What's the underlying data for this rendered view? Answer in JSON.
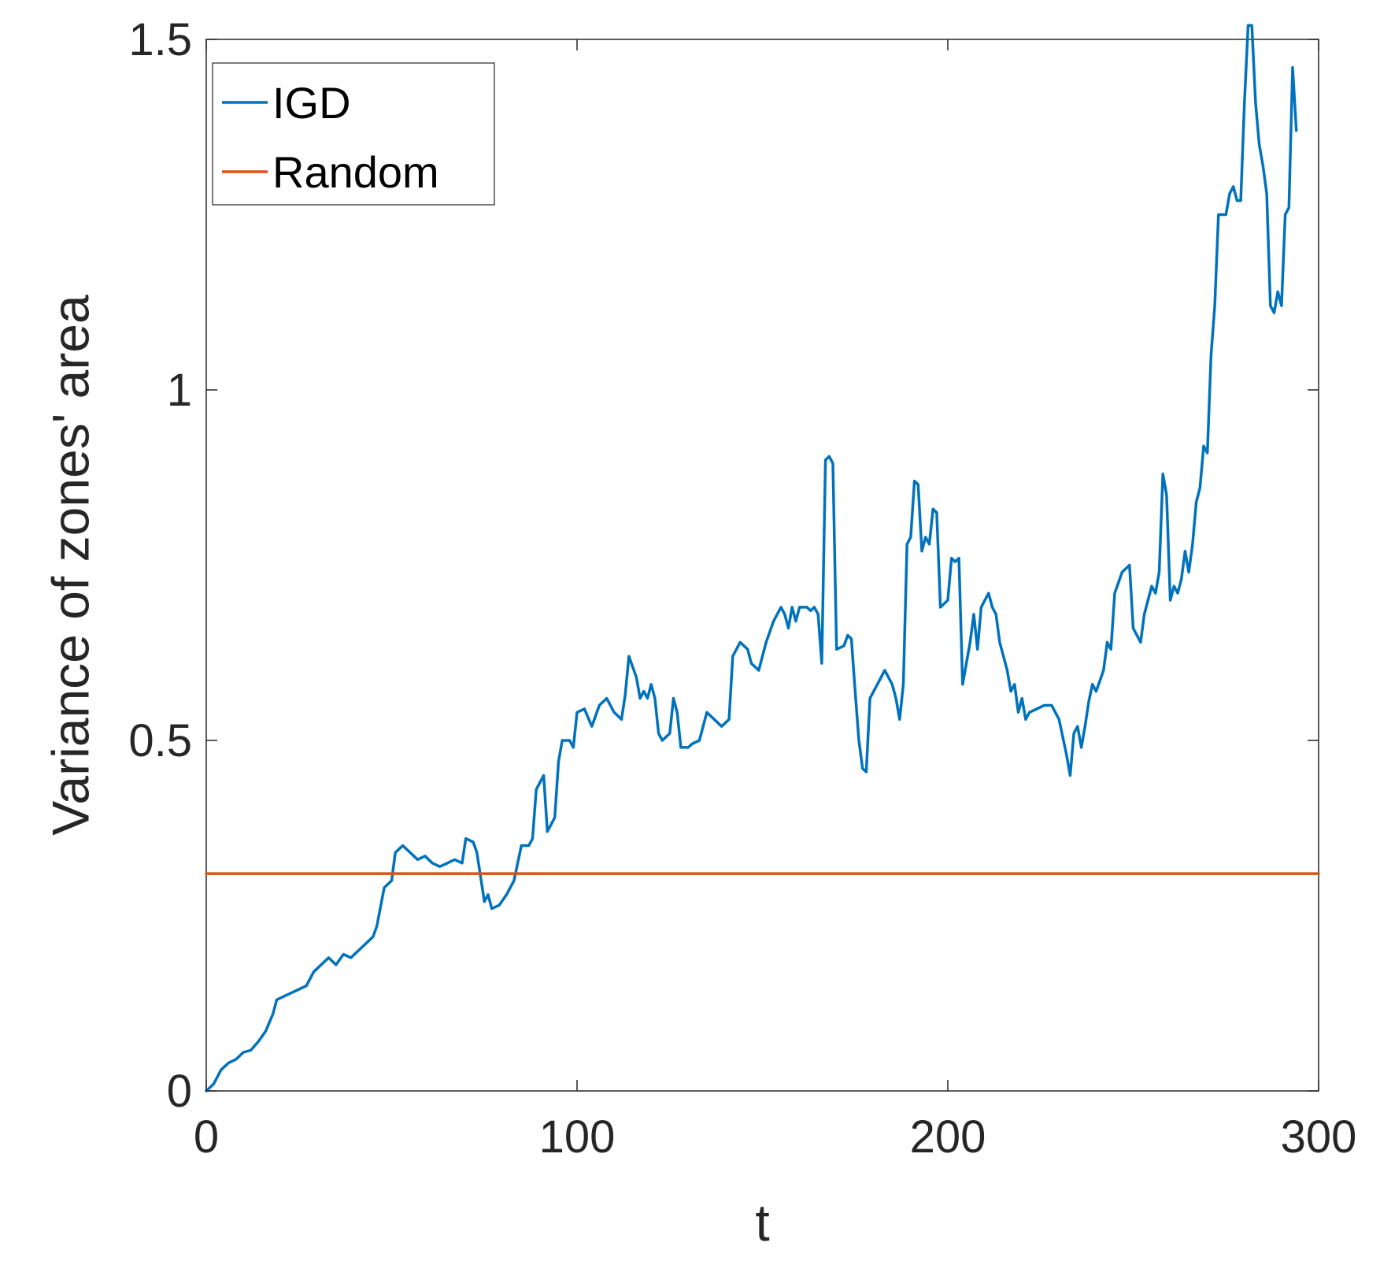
{
  "chart_data": {
    "type": "line",
    "title": "",
    "xlabel": "t",
    "ylabel": "Variance of zones' area",
    "xlim": [
      0,
      300
    ],
    "ylim": [
      0,
      1.5
    ],
    "xticks": [
      0,
      100,
      200,
      300
    ],
    "xtick_labels": [
      "0",
      "100",
      "200",
      "300"
    ],
    "yticks": [
      0,
      0.5,
      1,
      1.5
    ],
    "ytick_labels": [
      "0",
      "0.5",
      "1",
      "1.5"
    ],
    "grid": false,
    "legend_position": "top-left",
    "series": [
      {
        "name": "IGD",
        "color": "#0072BD",
        "points": [
          [
            0,
            0.0
          ],
          [
            2,
            0.01
          ],
          [
            4,
            0.03
          ],
          [
            6,
            0.04
          ],
          [
            8,
            0.045
          ],
          [
            10,
            0.055
          ],
          [
            12,
            0.058
          ],
          [
            14,
            0.07
          ],
          [
            16,
            0.085
          ],
          [
            18,
            0.11
          ],
          [
            19,
            0.13
          ],
          [
            21,
            0.135
          ],
          [
            23,
            0.14
          ],
          [
            25,
            0.145
          ],
          [
            27,
            0.15
          ],
          [
            29,
            0.17
          ],
          [
            31,
            0.18
          ],
          [
            33,
            0.19
          ],
          [
            35,
            0.18
          ],
          [
            37,
            0.195
          ],
          [
            39,
            0.19
          ],
          [
            41,
            0.2
          ],
          [
            43,
            0.21
          ],
          [
            45,
            0.22
          ],
          [
            46,
            0.235
          ],
          [
            48,
            0.29
          ],
          [
            50,
            0.3
          ],
          [
            51,
            0.34
          ],
          [
            53,
            0.35
          ],
          [
            55,
            0.34
          ],
          [
            57,
            0.33
          ],
          [
            59,
            0.335
          ],
          [
            61,
            0.325
          ],
          [
            63,
            0.32
          ],
          [
            65,
            0.325
          ],
          [
            67,
            0.33
          ],
          [
            69,
            0.325
          ],
          [
            70,
            0.36
          ],
          [
            72,
            0.355
          ],
          [
            73,
            0.34
          ],
          [
            75,
            0.27
          ],
          [
            76,
            0.28
          ],
          [
            77,
            0.26
          ],
          [
            79,
            0.265
          ],
          [
            81,
            0.28
          ],
          [
            83,
            0.3
          ],
          [
            85,
            0.35
          ],
          [
            87,
            0.35
          ],
          [
            88,
            0.36
          ],
          [
            89,
            0.43
          ],
          [
            91,
            0.45
          ],
          [
            92,
            0.37
          ],
          [
            93,
            0.38
          ],
          [
            94,
            0.39
          ],
          [
            95,
            0.47
          ],
          [
            96,
            0.5
          ],
          [
            98,
            0.5
          ],
          [
            99,
            0.49
          ],
          [
            100,
            0.54
          ],
          [
            102,
            0.545
          ],
          [
            104,
            0.52
          ],
          [
            106,
            0.55
          ],
          [
            108,
            0.56
          ],
          [
            110,
            0.54
          ],
          [
            112,
            0.53
          ],
          [
            113,
            0.565
          ],
          [
            114,
            0.62
          ],
          [
            116,
            0.59
          ],
          [
            117,
            0.56
          ],
          [
            118,
            0.57
          ],
          [
            119,
            0.56
          ],
          [
            120,
            0.58
          ],
          [
            121,
            0.56
          ],
          [
            122,
            0.51
          ],
          [
            123,
            0.5
          ],
          [
            125,
            0.51
          ],
          [
            126,
            0.56
          ],
          [
            127,
            0.54
          ],
          [
            128,
            0.49
          ],
          [
            130,
            0.49
          ],
          [
            131,
            0.495
          ],
          [
            133,
            0.5
          ],
          [
            135,
            0.54
          ],
          [
            137,
            0.53
          ],
          [
            139,
            0.52
          ],
          [
            141,
            0.53
          ],
          [
            142,
            0.62
          ],
          [
            144,
            0.64
          ],
          [
            146,
            0.63
          ],
          [
            147,
            0.61
          ],
          [
            149,
            0.6
          ],
          [
            151,
            0.64
          ],
          [
            153,
            0.67
          ],
          [
            155,
            0.69
          ],
          [
            156,
            0.68
          ],
          [
            157,
            0.66
          ],
          [
            158,
            0.69
          ],
          [
            159,
            0.67
          ],
          [
            160,
            0.69
          ],
          [
            162,
            0.69
          ],
          [
            163,
            0.685
          ],
          [
            164,
            0.69
          ],
          [
            165,
            0.68
          ],
          [
            166,
            0.61
          ],
          [
            167,
            0.9
          ],
          [
            168,
            0.905
          ],
          [
            169,
            0.895
          ],
          [
            170,
            0.63
          ],
          [
            172,
            0.635
          ],
          [
            173,
            0.65
          ],
          [
            174,
            0.645
          ],
          [
            175,
            0.57
          ],
          [
            176,
            0.5
          ],
          [
            177,
            0.46
          ],
          [
            178,
            0.455
          ],
          [
            179,
            0.56
          ],
          [
            181,
            0.58
          ],
          [
            183,
            0.6
          ],
          [
            185,
            0.58
          ],
          [
            186,
            0.56
          ],
          [
            187,
            0.53
          ],
          [
            188,
            0.58
          ],
          [
            189,
            0.78
          ],
          [
            190,
            0.79
          ],
          [
            191,
            0.87
          ],
          [
            192,
            0.865
          ],
          [
            193,
            0.77
          ],
          [
            194,
            0.79
          ],
          [
            195,
            0.78
          ],
          [
            196,
            0.83
          ],
          [
            197,
            0.825
          ],
          [
            198,
            0.69
          ],
          [
            199,
            0.695
          ],
          [
            200,
            0.7
          ],
          [
            201,
            0.76
          ],
          [
            202,
            0.755
          ],
          [
            203,
            0.76
          ],
          [
            204,
            0.58
          ],
          [
            205,
            0.61
          ],
          [
            206,
            0.64
          ],
          [
            207,
            0.68
          ],
          [
            208,
            0.63
          ],
          [
            209,
            0.69
          ],
          [
            210,
            0.7
          ],
          [
            211,
            0.71
          ],
          [
            212,
            0.69
          ],
          [
            213,
            0.68
          ],
          [
            214,
            0.64
          ],
          [
            215,
            0.62
          ],
          [
            216,
            0.6
          ],
          [
            217,
            0.57
          ],
          [
            218,
            0.58
          ],
          [
            219,
            0.54
          ],
          [
            220,
            0.56
          ],
          [
            221,
            0.53
          ],
          [
            222,
            0.54
          ],
          [
            224,
            0.545
          ],
          [
            226,
            0.55
          ],
          [
            228,
            0.55
          ],
          [
            230,
            0.53
          ],
          [
            232,
            0.48
          ],
          [
            233,
            0.45
          ],
          [
            234,
            0.51
          ],
          [
            235,
            0.52
          ],
          [
            236,
            0.49
          ],
          [
            237,
            0.52
          ],
          [
            238,
            0.555
          ],
          [
            239,
            0.58
          ],
          [
            240,
            0.57
          ],
          [
            241,
            0.585
          ],
          [
            242,
            0.6
          ],
          [
            243,
            0.64
          ],
          [
            244,
            0.63
          ],
          [
            245,
            0.71
          ],
          [
            247,
            0.74
          ],
          [
            249,
            0.75
          ],
          [
            250,
            0.66
          ],
          [
            252,
            0.64
          ],
          [
            253,
            0.68
          ],
          [
            254,
            0.7
          ],
          [
            255,
            0.72
          ],
          [
            256,
            0.71
          ],
          [
            257,
            0.74
          ],
          [
            258,
            0.88
          ],
          [
            259,
            0.85
          ],
          [
            260,
            0.7
          ],
          [
            261,
            0.72
          ],
          [
            262,
            0.71
          ],
          [
            263,
            0.73
          ],
          [
            264,
            0.77
          ],
          [
            265,
            0.74
          ],
          [
            266,
            0.78
          ],
          [
            267,
            0.84
          ],
          [
            268,
            0.86
          ],
          [
            269,
            0.92
          ],
          [
            270,
            0.91
          ],
          [
            271,
            1.05
          ],
          [
            272,
            1.12
          ],
          [
            273,
            1.25
          ],
          [
            275,
            1.25
          ],
          [
            276,
            1.28
          ],
          [
            277,
            1.29
          ],
          [
            278,
            1.27
          ],
          [
            279,
            1.27
          ],
          [
            280,
            1.41
          ],
          [
            281,
            1.52
          ],
          [
            282,
            1.52
          ],
          [
            283,
            1.41
          ],
          [
            284,
            1.35
          ],
          [
            285,
            1.32
          ],
          [
            286,
            1.28
          ],
          [
            287,
            1.12
          ],
          [
            288,
            1.11
          ],
          [
            289,
            1.14
          ],
          [
            290,
            1.12
          ],
          [
            291,
            1.25
          ],
          [
            292,
            1.26
          ],
          [
            293,
            1.46
          ],
          [
            294,
            1.37
          ]
        ]
      },
      {
        "name": "Random",
        "color": "#D95319",
        "points": [
          [
            0,
            0.31
          ],
          [
            300,
            0.31
          ]
        ]
      }
    ]
  }
}
